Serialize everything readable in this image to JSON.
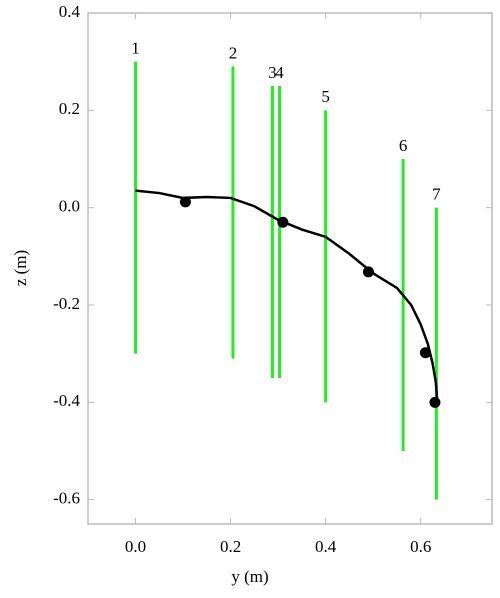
{
  "chart_data": {
    "type": "segments",
    "xlabel": "y (m)",
    "ylabel": "z (m)",
    "xlim": [
      -0.1,
      0.75
    ],
    "ylim": [
      -0.65,
      0.4
    ],
    "xticks": [
      {
        "value": 0,
        "label": "0.0"
      },
      0.2,
      0.4,
      0.6
    ],
    "yticks": [
      0.4,
      0.2,
      {
        "value": 0,
        "label": "0.0"
      },
      -0.2,
      -0.4,
      -0.6
    ],
    "segment_color": "#22ee22",
    "curve_color": "#000000",
    "segments": [
      {
        "label": "1",
        "x": 0.0,
        "y1": 0.3,
        "y2": -0.3
      },
      {
        "label": "2",
        "x": 0.205,
        "y1": 0.29,
        "y2": -0.31
      },
      {
        "label": "3",
        "x": 0.288,
        "y1": 0.25,
        "y2": -0.35
      },
      {
        "label": "4",
        "x": 0.303,
        "y1": 0.25,
        "y2": -0.35
      },
      {
        "label": "5",
        "x": 0.4,
        "y1": 0.2,
        "y2": -0.4
      },
      {
        "label": "6",
        "x": 0.563,
        "y1": 0.1,
        "y2": -0.5
      },
      {
        "label": "7",
        "x": 0.633,
        "y1": 0.0,
        "y2": -0.6
      }
    ],
    "curve": {
      "x": [
        0.0,
        0.05,
        0.1,
        0.15,
        0.2,
        0.25,
        0.3,
        0.35,
        0.4,
        0.45,
        0.5,
        0.55,
        0.58,
        0.6,
        0.615,
        0.625,
        0.632,
        0.635
      ],
      "y": [
        0.035,
        0.03,
        0.02,
        0.022,
        0.02,
        0.003,
        -0.025,
        -0.045,
        -0.06,
        -0.095,
        -0.135,
        -0.165,
        -0.2,
        -0.24,
        -0.28,
        -0.32,
        -0.36,
        -0.4
      ]
    },
    "markers": {
      "x": [
        0.105,
        0.31,
        0.49,
        0.61,
        0.63
      ],
      "y": [
        0.012,
        -0.03,
        -0.132,
        -0.298,
        -0.4
      ]
    }
  }
}
